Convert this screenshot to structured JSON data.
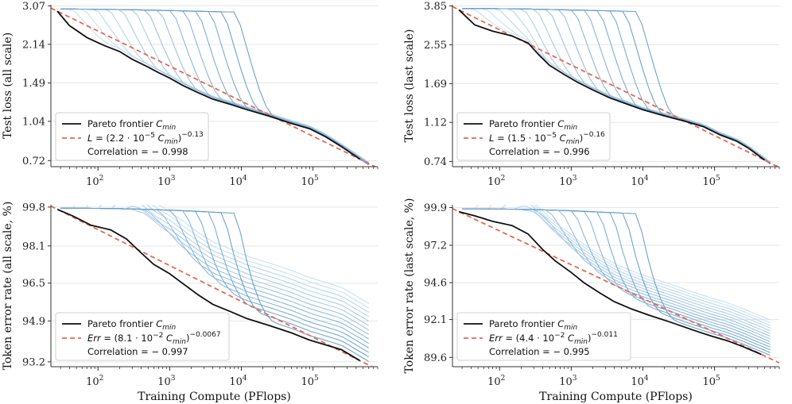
{
  "chart_data": [
    {
      "type": "line",
      "ylabel": "Test loss (all scale)",
      "xlabel": "",
      "xscale": "log",
      "yscale": "log",
      "xlim": [
        22,
        800000
      ],
      "ylim": [
        0.68,
        3.1
      ],
      "xticks": [
        {
          "v": 100,
          "label": "2"
        },
        {
          "v": 1000,
          "label": "3"
        },
        {
          "v": 10000,
          "label": "4"
        },
        {
          "v": 100000,
          "label": "5"
        }
      ],
      "yticks": [
        {
          "v": 0.72,
          "label": "0.72"
        },
        {
          "v": 1.04,
          "label": "1.04"
        },
        {
          "v": 1.49,
          "label": "1.49"
        },
        {
          "v": 2.14,
          "label": "2.14"
        },
        {
          "v": 3.07,
          "label": "3.07"
        }
      ],
      "fit": {
        "A": 2.2e-05,
        "exp": -0.13
      },
      "pareto": [
        [
          27,
          2.92
        ],
        [
          40,
          2.55
        ],
        [
          70,
          2.28
        ],
        [
          120,
          2.12
        ],
        [
          200,
          2.0
        ],
        [
          300,
          1.86
        ],
        [
          500,
          1.73
        ],
        [
          700,
          1.64
        ],
        [
          1000,
          1.56
        ],
        [
          1500,
          1.46
        ],
        [
          2500,
          1.36
        ],
        [
          4000,
          1.28
        ],
        [
          7000,
          1.22
        ],
        [
          12000,
          1.16
        ],
        [
          25000,
          1.09
        ],
        [
          50000,
          1.02
        ],
        [
          90000,
          0.97
        ],
        [
          150000,
          0.9
        ],
        [
          250000,
          0.82
        ],
        [
          450000,
          0.73
        ]
      ],
      "runs": {
        "count": 14,
        "start_loss": 2.98,
        "first_x": 45,
        "mult": 1.5,
        "end_x": 600000,
        "end_loss": 0.76
      },
      "legend": {
        "pareto": "Pareto frontier ",
        "pareto_sym": "C",
        "pareto_sub": "min",
        "fit_sym": "L",
        "fit_pre": " = (2.2 · 10",
        "fit_pre_exp": "−5",
        "fit_mid_sym": " C",
        "fit_mid_sub": "min",
        "fit_close": ")",
        "fit_exp": "−0.13",
        "corr": "Correlation  = − 0.998"
      }
    },
    {
      "type": "line",
      "ylabel": "Test loss (last scale)",
      "xlabel": "",
      "xscale": "log",
      "yscale": "log",
      "xlim": [
        22,
        800000
      ],
      "ylim": [
        0.7,
        3.9
      ],
      "xticks": [
        {
          "v": 100,
          "label": "2"
        },
        {
          "v": 1000,
          "label": "3"
        },
        {
          "v": 10000,
          "label": "4"
        },
        {
          "v": 100000,
          "label": "5"
        }
      ],
      "yticks": [
        {
          "v": 0.74,
          "label": "0.74"
        },
        {
          "v": 1.12,
          "label": "1.12"
        },
        {
          "v": 1.69,
          "label": "1.69"
        },
        {
          "v": 2.55,
          "label": "2.55"
        },
        {
          "v": 3.85,
          "label": "3.85"
        }
      ],
      "fit": {
        "A": 1.5e-05,
        "exp": -0.16
      },
      "pareto": [
        [
          27,
          3.7
        ],
        [
          45,
          3.15
        ],
        [
          80,
          2.95
        ],
        [
          150,
          2.8
        ],
        [
          250,
          2.6
        ],
        [
          350,
          2.3
        ],
        [
          500,
          2.05
        ],
        [
          800,
          1.86
        ],
        [
          1200,
          1.72
        ],
        [
          2000,
          1.58
        ],
        [
          3500,
          1.45
        ],
        [
          6000,
          1.36
        ],
        [
          10000,
          1.28
        ],
        [
          20000,
          1.2
        ],
        [
          40000,
          1.13
        ],
        [
          70000,
          1.07
        ],
        [
          120000,
          0.98
        ],
        [
          200000,
          0.92
        ],
        [
          300000,
          0.85
        ],
        [
          500000,
          0.75
        ]
      ],
      "runs": {
        "count": 14,
        "start_loss": 3.75,
        "first_x": 45,
        "mult": 1.5,
        "end_x": 600000,
        "end_loss": 0.78
      },
      "legend": {
        "pareto": "Pareto frontier ",
        "pareto_sym": "C",
        "pareto_sub": "min",
        "fit_sym": "L",
        "fit_pre": " = (1.5 · 10",
        "fit_pre_exp": "−5",
        "fit_mid_sym": " C",
        "fit_mid_sub": "min",
        "fit_close": ")",
        "fit_exp": "−0.16",
        "corr": "Correlation  = − 0.996"
      }
    },
    {
      "type": "line",
      "ylabel": "Token error rate (all scale, %)",
      "xlabel": "Training Compute (PFlops)",
      "xscale": "log",
      "yscale": "log",
      "xlim": [
        22,
        800000
      ],
      "ylim": [
        93.0,
        99.9
      ],
      "xticks": [
        {
          "v": 100,
          "label": "2"
        },
        {
          "v": 1000,
          "label": "3"
        },
        {
          "v": 10000,
          "label": "4"
        },
        {
          "v": 100000,
          "label": "5"
        }
      ],
      "yticks": [
        {
          "v": 93.2,
          "label": "93.2"
        },
        {
          "v": 94.9,
          "label": "94.9"
        },
        {
          "v": 96.5,
          "label": "96.5"
        },
        {
          "v": 98.1,
          "label": "98.1"
        },
        {
          "v": 99.8,
          "label": "99.8"
        }
      ],
      "fit": {
        "A": 0.081,
        "exp": -0.0067
      },
      "pareto": [
        [
          27,
          99.7
        ],
        [
          45,
          99.4
        ],
        [
          80,
          99.0
        ],
        [
          150,
          98.8
        ],
        [
          250,
          98.4
        ],
        [
          400,
          97.8
        ],
        [
          600,
          97.3
        ],
        [
          1000,
          96.9
        ],
        [
          1500,
          96.5
        ],
        [
          2500,
          96.0
        ],
        [
          4000,
          95.6
        ],
        [
          7000,
          95.3
        ],
        [
          12000,
          95.0
        ],
        [
          25000,
          94.7
        ],
        [
          50000,
          94.4
        ],
        [
          90000,
          94.1
        ],
        [
          150000,
          93.9
        ],
        [
          250000,
          93.7
        ],
        [
          450000,
          93.25
        ]
      ],
      "runs": {
        "count": 14,
        "start_loss": 99.75,
        "first_x": 45,
        "mult": 1.5,
        "end_x": 600000,
        "end_loss": 93.35
      },
      "legend": {
        "pareto": "Pareto frontier ",
        "pareto_sym": "C",
        "pareto_sub": "min",
        "fit_sym": "Err",
        "fit_pre": " = (8.1 · 10",
        "fit_pre_exp": "−2",
        "fit_mid_sym": " C",
        "fit_mid_sub": "min",
        "fit_close": ")",
        "fit_exp": "−0.0067",
        "corr": "Correlation  = − 0.997"
      }
    },
    {
      "type": "line",
      "ylabel": "Token error rate (last scale, %)",
      "xlabel": "Training Compute (PFlops)",
      "xscale": "log",
      "yscale": "log",
      "xlim": [
        22,
        800000
      ],
      "ylim": [
        89.0,
        100.1
      ],
      "xticks": [
        {
          "v": 100,
          "label": "2"
        },
        {
          "v": 1000,
          "label": "3"
        },
        {
          "v": 10000,
          "label": "4"
        },
        {
          "v": 100000,
          "label": "5"
        }
      ],
      "yticks": [
        {
          "v": 89.6,
          "label": "89.6"
        },
        {
          "v": 92.1,
          "label": "92.1"
        },
        {
          "v": 94.6,
          "label": "94.6"
        },
        {
          "v": 97.2,
          "label": "97.2"
        },
        {
          "v": 99.9,
          "label": "99.9"
        }
      ],
      "fit": {
        "A": 0.044,
        "exp": -0.011
      },
      "pareto": [
        [
          27,
          99.6
        ],
        [
          45,
          99.3
        ],
        [
          80,
          98.9
        ],
        [
          150,
          98.6
        ],
        [
          250,
          98.0
        ],
        [
          400,
          96.9
        ],
        [
          600,
          96.1
        ],
        [
          1000,
          95.3
        ],
        [
          1500,
          94.6
        ],
        [
          2500,
          93.9
        ],
        [
          4000,
          93.3
        ],
        [
          7000,
          92.8
        ],
        [
          12000,
          92.4
        ],
        [
          25000,
          91.9
        ],
        [
          50000,
          91.4
        ],
        [
          90000,
          91.0
        ],
        [
          150000,
          90.7
        ],
        [
          250000,
          90.3
        ],
        [
          450000,
          89.8
        ]
      ],
      "runs": {
        "count": 14,
        "start_loss": 99.8,
        "first_x": 45,
        "mult": 1.5,
        "end_x": 600000,
        "end_loss": 89.8
      },
      "legend": {
        "pareto": "Pareto frontier ",
        "pareto_sym": "C",
        "pareto_sub": "min",
        "fit_sym": "Err",
        "fit_pre": " = (4.4 · 10",
        "fit_pre_exp": "−2",
        "fit_mid_sym": " C",
        "fit_mid_sub": "min",
        "fit_close": ")",
        "fit_exp": "−0.011",
        "corr": "Correlation  = − 0.995"
      }
    }
  ],
  "colors": {
    "pareto": "#111111",
    "fit": "#e8674f",
    "runs": [
      "#c6dff0",
      "#b6d4ea",
      "#a6cae4",
      "#96bfde",
      "#86b4d8",
      "#76a9d2",
      "#669ecc",
      "#5f98c8"
    ],
    "grid": "#e6e6e6",
    "axis": "#333333"
  }
}
